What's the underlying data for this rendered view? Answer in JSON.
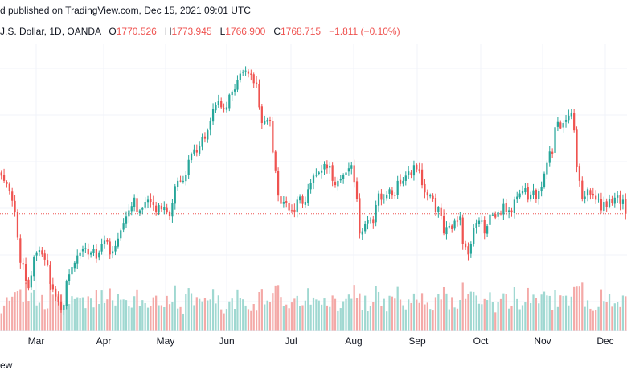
{
  "header": {
    "published": "d published on TradingView.com, Dec 15, 2021 09:01 UTC",
    "symbol_line": "J.S. Dollar, 1D, OANDA",
    "open_label": "O",
    "open": "1770.526",
    "high_label": "H",
    "high": "1773.945",
    "low_label": "L",
    "low": "1766.900",
    "close_label": "C",
    "close": "1768.715",
    "change": "−1.811 (−0.10%)"
  },
  "footer": {
    "watermark": "ew"
  },
  "colors": {
    "up": "#26a69a",
    "down": "#ef5350",
    "vol_up": "#9fd8d1",
    "vol_down": "#f4a9a7",
    "last_line": "#ef5350"
  },
  "chart_data": {
    "type": "candlestick",
    "x_tick_labels": [
      "Mar",
      "Apr",
      "May",
      "Jun",
      "Jul",
      "Aug",
      "Sep",
      "Oct",
      "Nov",
      "Dec"
    ],
    "last_price": 1768.715,
    "y_range": [
      1666,
      1930
    ],
    "closes": [
      1805,
      1800,
      1797,
      1790,
      1781,
      1770,
      1746,
      1722,
      1721,
      1705,
      1698,
      1710,
      1728,
      1732,
      1734,
      1730,
      1725,
      1720,
      1702,
      1697,
      1690,
      1685,
      1677,
      1682,
      1705,
      1711,
      1718,
      1722,
      1729,
      1732,
      1735,
      1736,
      1730,
      1732,
      1735,
      1726,
      1732,
      1740,
      1743,
      1742,
      1730,
      1733,
      1738,
      1745,
      1753,
      1760,
      1766,
      1772,
      1776,
      1784,
      1770,
      1772,
      1774,
      1780,
      1782,
      1780,
      1777,
      1770,
      1777,
      1773,
      1775,
      1770,
      1767,
      1779,
      1795,
      1800,
      1800,
      1800,
      1806,
      1820,
      1826,
      1830,
      1827,
      1833,
      1842,
      1840,
      1848,
      1857,
      1868,
      1872,
      1876,
      1870,
      1868,
      1870,
      1882,
      1885,
      1887,
      1896,
      1902,
      1904,
      1905,
      1902,
      1901,
      1893,
      1892,
      1870,
      1855,
      1857,
      1858,
      1857,
      1827,
      1810,
      1786,
      1778,
      1780,
      1779,
      1772,
      1772,
      1770,
      1782,
      1785,
      1778,
      1780,
      1792,
      1798,
      1805,
      1806,
      1808,
      1810,
      1816,
      1812,
      1814,
      1800,
      1796,
      1800,
      1802,
      1806,
      1808,
      1812,
      1815,
      1799,
      1783,
      1750,
      1752,
      1759,
      1763,
      1763,
      1760,
      1777,
      1788,
      1782,
      1783,
      1787,
      1792,
      1786,
      1786,
      1800,
      1797,
      1800,
      1805,
      1809,
      1806,
      1815,
      1811,
      1810,
      1796,
      1789,
      1786,
      1786,
      1783,
      1770,
      1775,
      1767,
      1750,
      1756,
      1757,
      1754,
      1762,
      1762,
      1766,
      1740,
      1737,
      1730,
      1740,
      1755,
      1760,
      1762,
      1762,
      1750,
      1757,
      1768,
      1768,
      1765,
      1770,
      1769,
      1778,
      1770,
      1772,
      1770,
      1782,
      1785,
      1788,
      1790,
      1793,
      1782,
      1787,
      1791,
      1783,
      1790,
      1794,
      1807,
      1817,
      1828,
      1826,
      1851,
      1856,
      1850,
      1855,
      1858,
      1862,
      1865,
      1848,
      1813,
      1800,
      1783,
      1785,
      1792,
      1787,
      1786,
      1782,
      1783,
      1772,
      1780,
      1775,
      1783,
      1779,
      1784,
      1786,
      1778,
      1782,
      1768.7
    ]
  }
}
